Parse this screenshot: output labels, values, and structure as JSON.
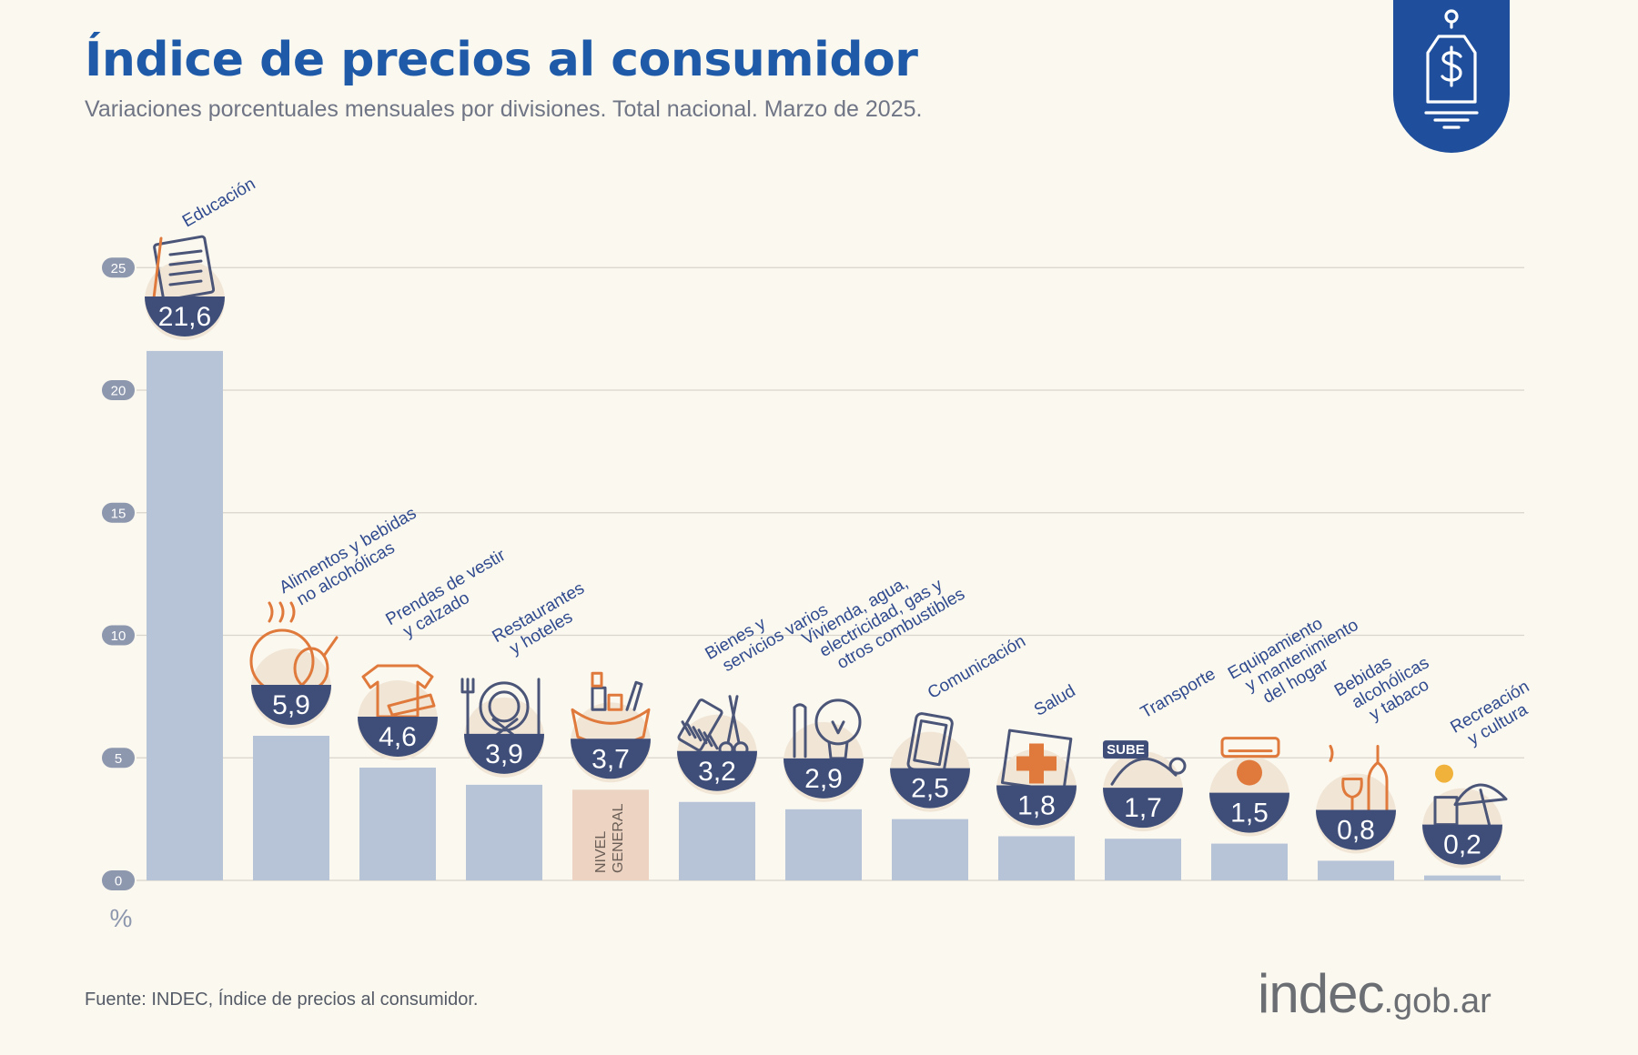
{
  "title": "Índice de precios al consumidor",
  "subtitle": "Variaciones porcentuales mensuales por divisiones. Total nacional. Marzo de 2025.",
  "source": "Fuente: INDEC, Índice de precios al consumidor.",
  "logo": {
    "main": "indec",
    "domain": ".gob.ar"
  },
  "badge_icon": "price-tag-dollar-icon",
  "colors": {
    "title": "#1f5aa8",
    "bar": "#b7c3d7",
    "general_bar": "#ecd3c2",
    "value_badge": "#3f4e79",
    "label": "#2f4a8e",
    "icon_accent": "#e07a3c",
    "gridline": "#d9d5cc",
    "background": "#fbf8f0"
  },
  "chart_data": {
    "type": "bar",
    "ylim": [
      0,
      25
    ],
    "yticks": [
      0,
      5,
      10,
      15,
      20,
      25
    ],
    "ylabel": "%",
    "grid": true,
    "categories": [
      {
        "lines": [
          "Educación"
        ],
        "icon": "notebook-icon"
      },
      {
        "lines": [
          "Alimentos y bebidas",
          "no alcohólicas"
        ],
        "icon": "food-icon"
      },
      {
        "lines": [
          "Prendas de vestir",
          "y calzado"
        ],
        "icon": "clothing-icon"
      },
      {
        "lines": [
          "Restaurantes",
          "y hoteles"
        ],
        "icon": "cutlery-icon"
      },
      {
        "lines": [],
        "inner_label": [
          "NIVEL",
          "GENERAL"
        ],
        "icon": "shopping-bag-icon",
        "general": true
      },
      {
        "lines": [
          "Bienes y",
          "servicios varios"
        ],
        "icon": "comb-scissors-icon"
      },
      {
        "lines": [
          "Vivienda, agua,",
          "electricidad, gas y",
          "otros combustibles"
        ],
        "icon": "lightbulb-icon"
      },
      {
        "lines": [
          "Comunicación"
        ],
        "icon": "smartphone-icon"
      },
      {
        "lines": [
          "Salud"
        ],
        "icon": "first-aid-icon"
      },
      {
        "lines": [
          "Transporte"
        ],
        "icon": "sube-card-icon",
        "icon_text": "SUBE"
      },
      {
        "lines": [
          "Equipamiento",
          "y mantenimiento",
          "del hogar"
        ],
        "icon": "air-conditioner-icon"
      },
      {
        "lines": [
          "Bebidas",
          "alcohólicas",
          "y tabaco"
        ],
        "icon": "wine-icon"
      },
      {
        "lines": [
          "Recreación",
          "y cultura"
        ],
        "icon": "beach-umbrella-icon"
      }
    ],
    "values": [
      21.6,
      5.9,
      4.6,
      3.9,
      3.7,
      3.2,
      2.9,
      2.5,
      1.8,
      1.7,
      1.5,
      0.8,
      0.2
    ],
    "value_labels": [
      "21,6",
      "5,9",
      "4,6",
      "3,9",
      "3,7",
      "3,2",
      "2,9",
      "2,5",
      "1,8",
      "1,7",
      "1,5",
      "0,8",
      "0,2"
    ]
  }
}
